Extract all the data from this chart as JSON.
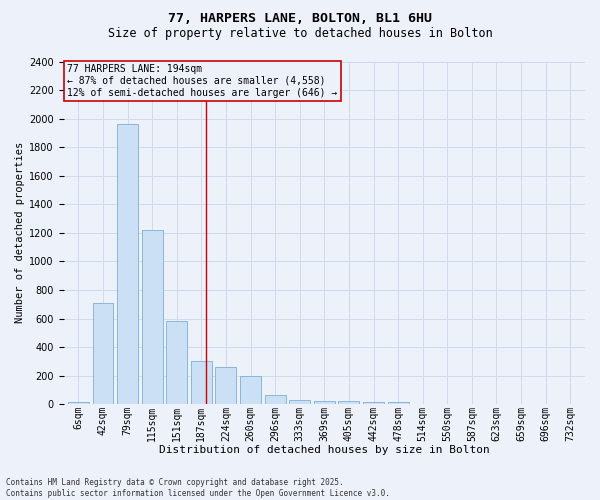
{
  "title1": "77, HARPERS LANE, BOLTON, BL1 6HU",
  "title2": "Size of property relative to detached houses in Bolton",
  "xlabel": "Distribution of detached houses by size in Bolton",
  "ylabel": "Number of detached properties",
  "footnote": "Contains HM Land Registry data © Crown copyright and database right 2025.\nContains public sector information licensed under the Open Government Licence v3.0.",
  "bin_labels": [
    "6sqm",
    "42sqm",
    "79sqm",
    "115sqm",
    "151sqm",
    "187sqm",
    "224sqm",
    "260sqm",
    "296sqm",
    "333sqm",
    "369sqm",
    "405sqm",
    "442sqm",
    "478sqm",
    "514sqm",
    "550sqm",
    "587sqm",
    "623sqm",
    "659sqm",
    "696sqm",
    "732sqm"
  ],
  "bar_values": [
    15,
    710,
    1960,
    1220,
    580,
    305,
    260,
    200,
    65,
    30,
    20,
    20,
    15,
    15,
    0,
    0,
    0,
    0,
    0,
    0,
    0
  ],
  "bar_color": "#cce0f5",
  "bar_edge_color": "#7ab0d8",
  "grid_color": "#d0daea",
  "background_color": "#edf2fa",
  "annotation_box_color": "#cc0000",
  "annotation_text": "77 HARPERS LANE: 194sqm\n← 87% of detached houses are smaller (4,558)\n12% of semi-detached houses are larger (646) →",
  "ref_line_color": "#cc0000",
  "ylim": [
    0,
    2400
  ],
  "yticks": [
    0,
    200,
    400,
    600,
    800,
    1000,
    1200,
    1400,
    1600,
    1800,
    2000,
    2200,
    2400
  ],
  "title1_fontsize": 9.5,
  "title2_fontsize": 8.5,
  "ylabel_fontsize": 7.5,
  "xlabel_fontsize": 8,
  "tick_fontsize": 7,
  "annot_fontsize": 7,
  "footnote_fontsize": 5.5
}
